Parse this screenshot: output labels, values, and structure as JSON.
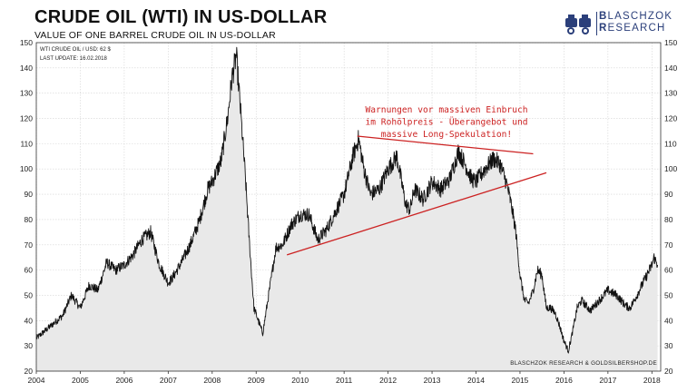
{
  "header": {
    "title": "CRUDE OIL (WTI) IN US-DOLLAR",
    "subtitle": "VALUE OF ONE BARREL CRUDE OIL IN US-DOLLAR"
  },
  "logo": {
    "line1_cap": "B",
    "line1_rest": "LASCHZOK",
    "line2_cap": "R",
    "line2_rest": "ESEARCH"
  },
  "chart_data": {
    "type": "area",
    "info_lines": [
      "WTI CRUDE OIL / USD: 62 $",
      "LAST UPDATE: 16.02.2018"
    ],
    "credit": "BLASCHZOK RESEARCH & GOLDSILBERSHOP.DE",
    "x_ticks": [
      "2004",
      "2005",
      "2006",
      "2007",
      "2008",
      "2009",
      "2010",
      "2011",
      "2012",
      "2013",
      "2014",
      "2015",
      "2016",
      "2017",
      "2018"
    ],
    "y_ticks": [
      20,
      30,
      40,
      50,
      60,
      70,
      80,
      90,
      100,
      110,
      120,
      130,
      140,
      150
    ],
    "xlim": [
      2004.0,
      2018.2
    ],
    "ylim": [
      20,
      150
    ],
    "grid": true,
    "series": [
      {
        "x": [
          2004.0,
          2004.2,
          2004.4,
          2004.6,
          2004.8,
          2005.0,
          2005.2,
          2005.4,
          2005.6,
          2005.8,
          2006.0,
          2006.2,
          2006.4,
          2006.6,
          2006.8,
          2007.0,
          2007.1,
          2007.3,
          2007.5,
          2007.7,
          2007.9,
          2008.0,
          2008.2,
          2008.35,
          2008.45,
          2008.55,
          2008.65,
          2008.75,
          2008.85,
          2008.95,
          2009.05,
          2009.15,
          2009.3,
          2009.45,
          2009.6,
          2009.8,
          2010.0,
          2010.2,
          2010.4,
          2010.6,
          2010.8,
          2011.0,
          2011.2,
          2011.33,
          2011.45,
          2011.6,
          2011.8,
          2012.0,
          2012.2,
          2012.4,
          2012.5,
          2012.6,
          2012.8,
          2013.0,
          2013.2,
          2013.4,
          2013.6,
          2013.75,
          2013.9,
          2014.0,
          2014.2,
          2014.4,
          2014.55,
          2014.7,
          2014.8,
          2014.9,
          2015.0,
          2015.1,
          2015.2,
          2015.3,
          2015.4,
          2015.5,
          2015.6,
          2015.7,
          2015.8,
          2015.9,
          2016.0,
          2016.1,
          2016.2,
          2016.3,
          2016.4,
          2016.6,
          2016.8,
          2017.0,
          2017.2,
          2017.4,
          2017.5,
          2017.6,
          2017.8,
          2018.0,
          2018.05,
          2018.1,
          2018.13
        ],
        "values": [
          33,
          36,
          39,
          42,
          50,
          45,
          54,
          52,
          63,
          60,
          62,
          66,
          72,
          75,
          62,
          55,
          57,
          63,
          70,
          79,
          92,
          95,
          103,
          120,
          136,
          145,
          122,
          98,
          70,
          45,
          40,
          35,
          52,
          69,
          70,
          78,
          82,
          82,
          72,
          76,
          83,
          90,
          105,
          112,
          100,
          90,
          92,
          100,
          105,
          86,
          84,
          92,
          88,
          95,
          92,
          96,
          107,
          102,
          96,
          95,
          100,
          104,
          102,
          94,
          86,
          76,
          58,
          48,
          47,
          52,
          60,
          58,
          45,
          45,
          43,
          38,
          32,
          28,
          36,
          45,
          48,
          44,
          48,
          52,
          50,
          46,
          45,
          48,
          55,
          62,
          65,
          63,
          62
        ]
      }
    ],
    "annotations": [
      {
        "text_lines": [
          "Warnungen vor massiven Einbruch",
          "im Rohölpreis - Überangebot und",
          "massive Long-Spekulation!"
        ],
        "color": "#cc2222"
      }
    ],
    "trendlines": [
      {
        "label": "resistance",
        "from": [
          2011.3,
          113
        ],
        "to": [
          2015.3,
          106
        ],
        "color": "#cc2222"
      },
      {
        "label": "support",
        "from": [
          2009.7,
          66
        ],
        "to": [
          2015.6,
          98.5
        ],
        "color": "#cc2222"
      }
    ]
  }
}
